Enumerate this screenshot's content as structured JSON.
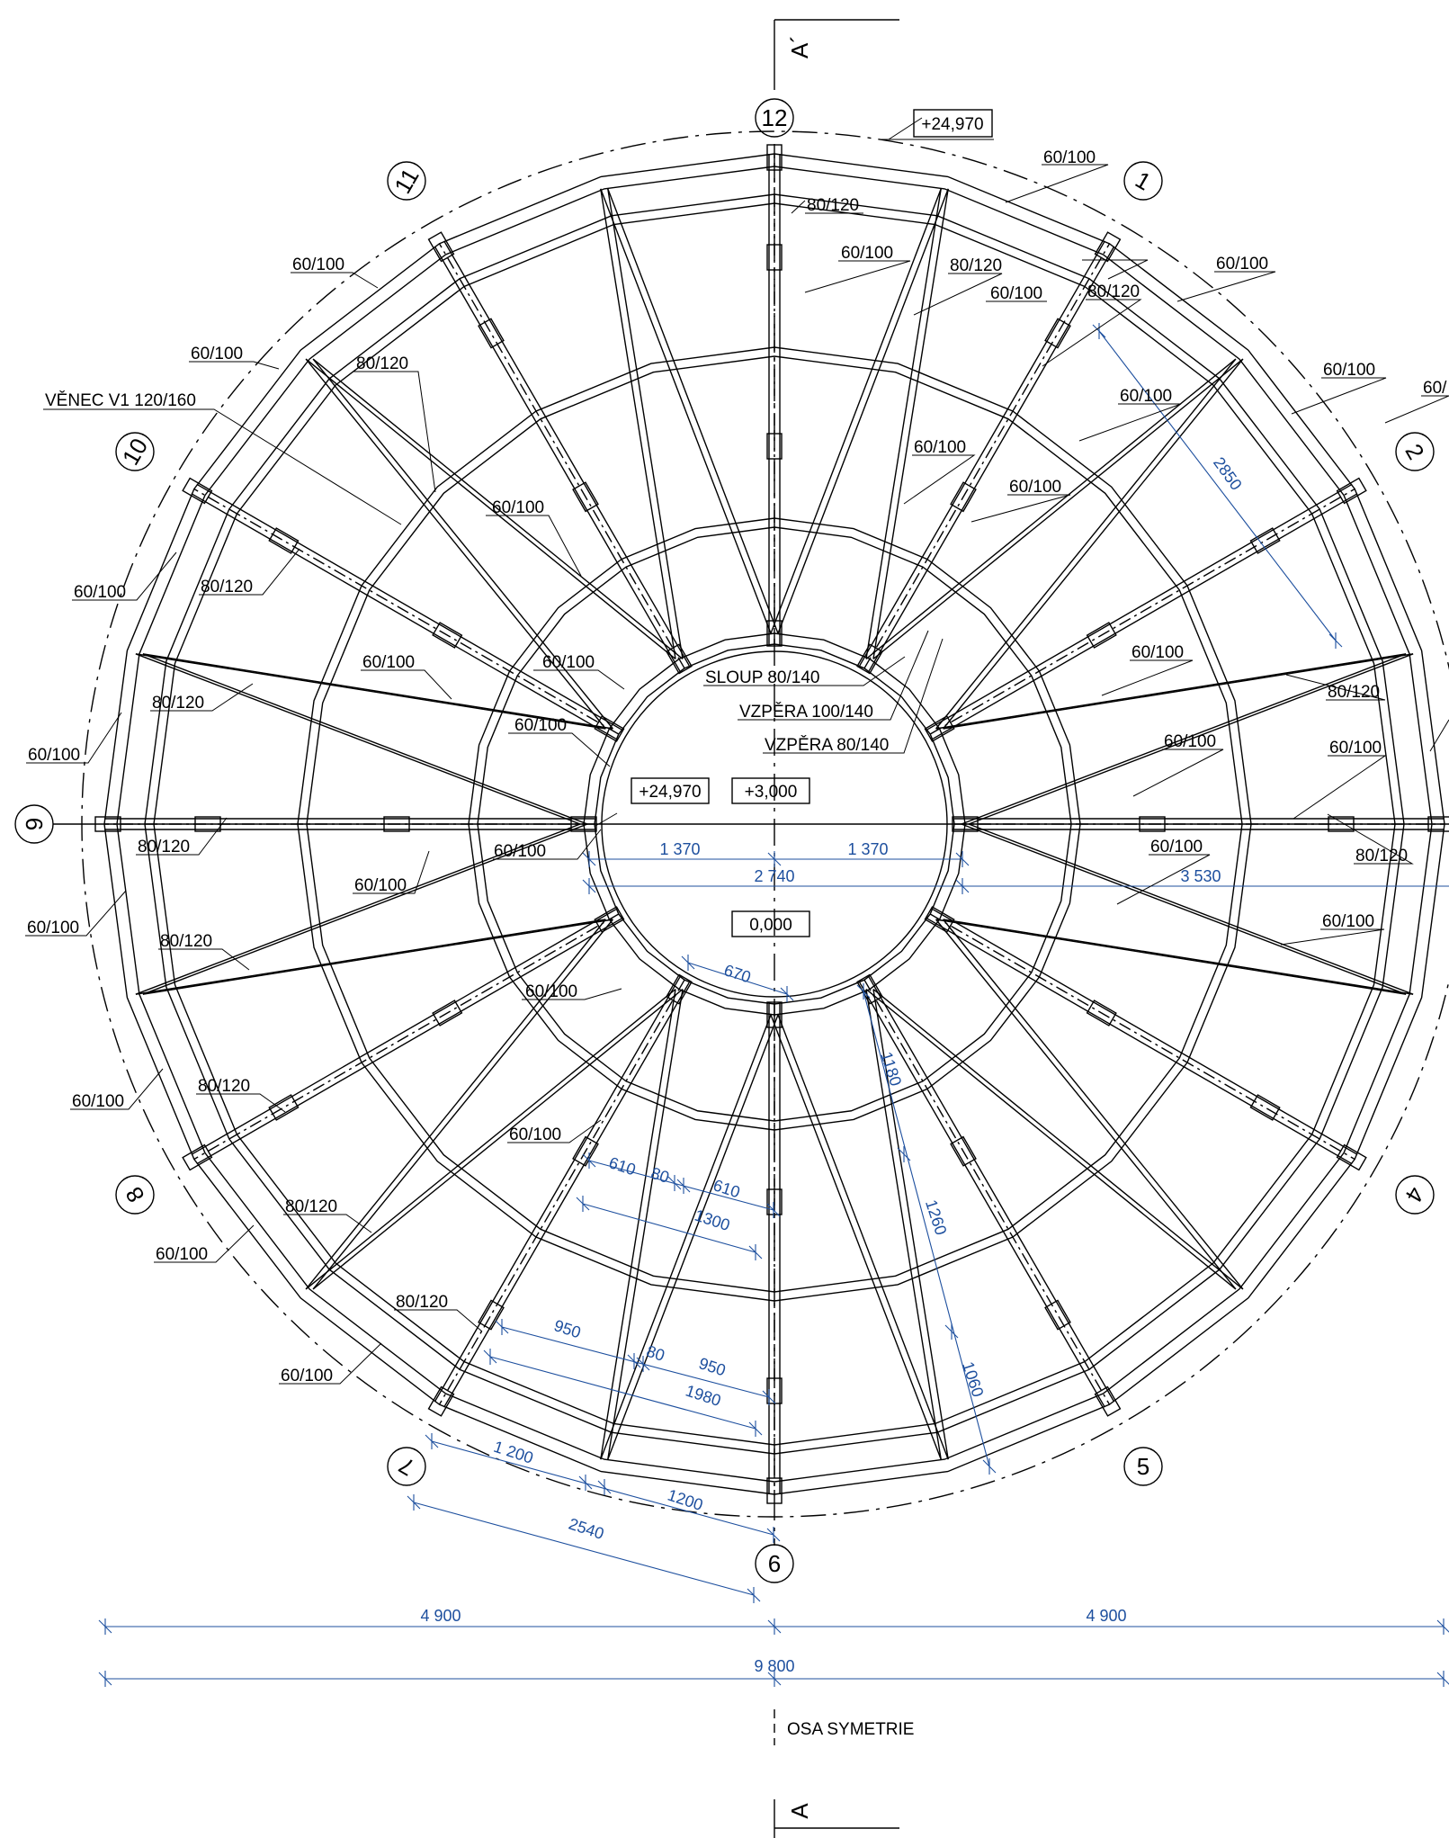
{
  "axes": [
    "1",
    "2",
    "4",
    "5",
    "6",
    "7",
    "8",
    "9",
    "10",
    "11",
    "12"
  ],
  "section_marks": {
    "top": "A´",
    "bottom": "A"
  },
  "elevations": {
    "top": "+24,970",
    "center_a": "+24,970",
    "center_b": "+3,000",
    "center_c": "0,000"
  },
  "labels": {
    "venec": "VĚNEC V1 120/160",
    "sloup": "SLOUP 80/140",
    "vzpera1": "VZPĚRA 100/140",
    "vzpera2": "VZPĚRA 80/140",
    "osa": "OSA SYMETRIE",
    "beam_a": "60/100",
    "beam_b": "80/120",
    "beam_c": "60/"
  },
  "dimensions": {
    "d1370": "1 370",
    "d2740": "2 740",
    "d3530": "3 530",
    "d670": "670",
    "d1180": "1180",
    "d1260": "1260",
    "d1060": "1060",
    "d2850": "2850",
    "d610": "610",
    "d80": "80",
    "d1300": "1300",
    "d950": "950",
    "d1980": "1980",
    "d1200a": "1 200",
    "d1200b": "1200",
    "d2540": "2540",
    "d4900": "4 900",
    "d9800": "9 800"
  }
}
